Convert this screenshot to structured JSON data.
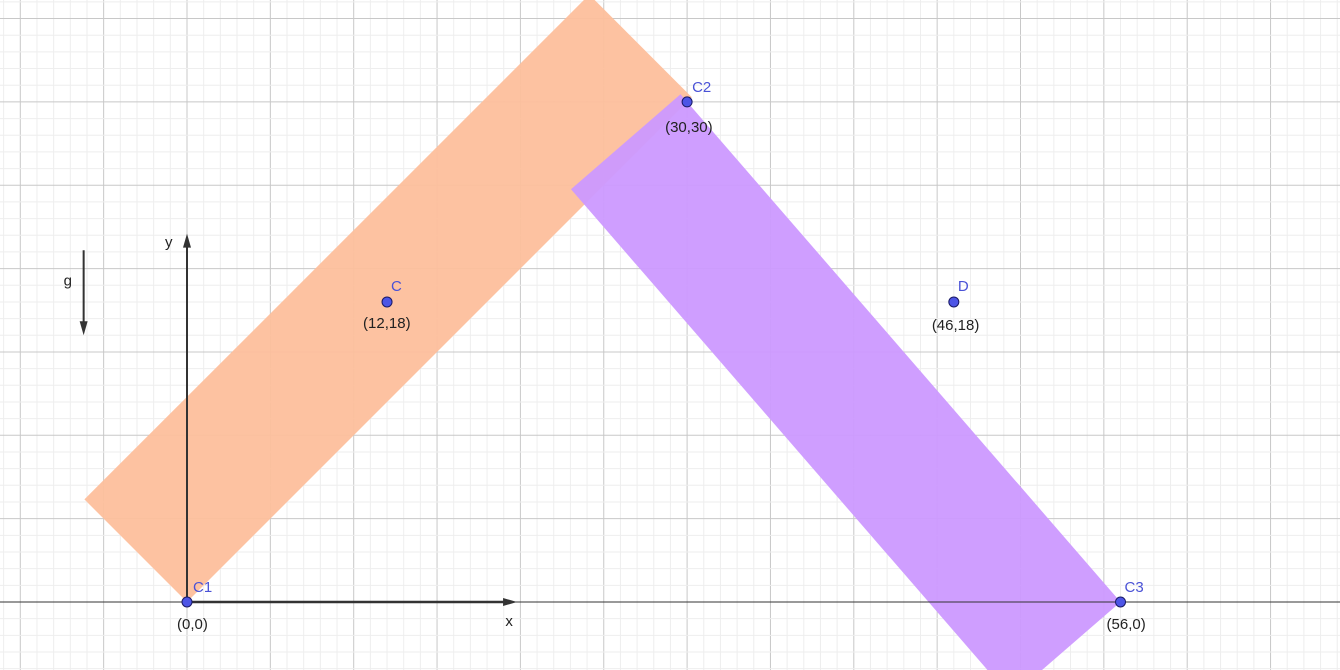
{
  "colors": {
    "bar_left": "#fdbf9c",
    "bar_right": "#cc99ff",
    "point_fill": "#4d55e6",
    "point_stroke": "#1a1a66",
    "grid_minor": "#eeeeee",
    "grid_major": "#c8c8c8",
    "axis": "#333333"
  },
  "axes": {
    "x_label": "x",
    "y_label": "y"
  },
  "gravity": {
    "label": "g"
  },
  "points": [
    {
      "id": "c1",
      "name": "C1",
      "x": 0,
      "y": 0,
      "coord_label": "(0,0)"
    },
    {
      "id": "c",
      "name": "C",
      "x": 12,
      "y": 18,
      "coord_label": "(12,18)"
    },
    {
      "id": "c2",
      "name": "C2",
      "x": 30,
      "y": 30,
      "coord_label": "(30,30)"
    },
    {
      "id": "d",
      "name": "D",
      "x": 46,
      "y": 18,
      "coord_label": "(46,18)"
    },
    {
      "id": "c3",
      "name": "C3",
      "x": 56,
      "y": 0,
      "coord_label": "(56,0)"
    }
  ],
  "bars": [
    {
      "id": "bar-left",
      "from": "C1",
      "to": "C2"
    },
    {
      "id": "bar-right",
      "from": "C2",
      "to": "C3"
    }
  ]
}
